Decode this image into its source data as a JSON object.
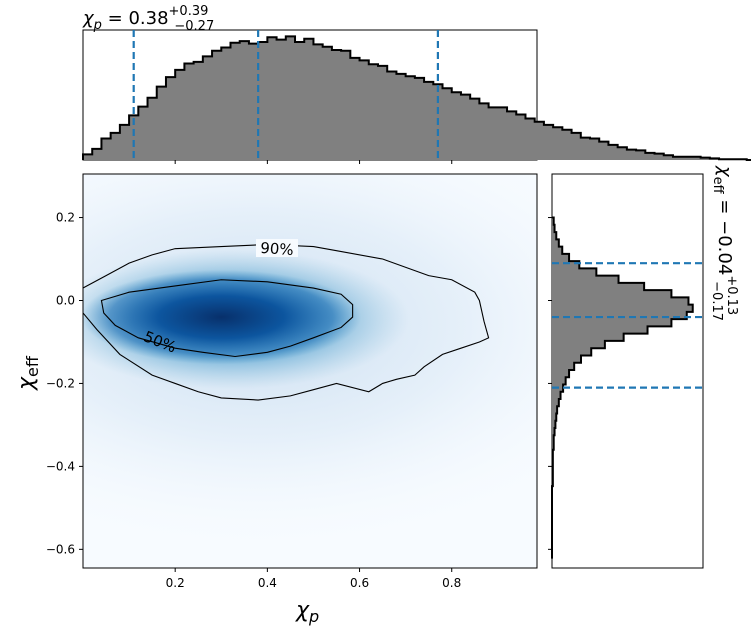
{
  "chart_data": {
    "type": "corner-plot",
    "titles": {
      "top": {
        "base": "χ",
        "sub": "p",
        "value": " = 0.38",
        "sup": "+0.39",
        "lo": "−0.27"
      },
      "right": {
        "base": "χ",
        "sub": "eff",
        "value": " = −0.04",
        "sup": "+0.13",
        "lo": "−0.17"
      }
    },
    "xlabel": {
      "base": "χ",
      "sub": "p"
    },
    "ylabel": {
      "base": "χ",
      "sub": "eff"
    },
    "xlim": [
      0.0,
      0.985
    ],
    "ylim": [
      -0.645,
      0.305
    ],
    "xticks": [
      {
        "v": 0.2,
        "label": "0.2"
      },
      {
        "v": 0.4,
        "label": "0.4"
      },
      {
        "v": 0.6,
        "label": "0.6"
      },
      {
        "v": 0.8,
        "label": "0.8"
      }
    ],
    "yticks": [
      {
        "v": 0.2,
        "label": "0.2"
      },
      {
        "v": 0.0,
        "label": "0.0"
      },
      {
        "v": -0.2,
        "label": "−0.2"
      },
      {
        "v": -0.4,
        "label": "−0.4"
      },
      {
        "v": -0.6,
        "label": "−0.6"
      }
    ],
    "chi_p_quantiles": [
      0.11,
      0.38,
      0.77
    ],
    "chi_eff_quantiles": [
      -0.21,
      -0.04,
      0.09
    ],
    "contour_labels": [
      "90%",
      "50%"
    ],
    "density_center": [
      0.3,
      -0.04
    ],
    "contour_50": [
      [
        0.04,
        0.0
      ],
      [
        0.1,
        0.02
      ],
      [
        0.2,
        0.035
      ],
      [
        0.3,
        0.05
      ],
      [
        0.4,
        0.045
      ],
      [
        0.5,
        0.03
      ],
      [
        0.56,
        0.015
      ],
      [
        0.585,
        -0.01
      ],
      [
        0.585,
        -0.04
      ],
      [
        0.56,
        -0.065
      ],
      [
        0.5,
        -0.09
      ],
      [
        0.45,
        -0.11
      ],
      [
        0.4,
        -0.125
      ],
      [
        0.33,
        -0.135
      ],
      [
        0.26,
        -0.125
      ],
      [
        0.2,
        -0.115
      ],
      [
        0.12,
        -0.09
      ],
      [
        0.07,
        -0.06
      ],
      [
        0.045,
        -0.03
      ],
      [
        0.04,
        0.0
      ]
    ],
    "contour_90": [
      [
        0.0,
        0.03
      ],
      [
        0.05,
        0.06
      ],
      [
        0.1,
        0.09
      ],
      [
        0.15,
        0.11
      ],
      [
        0.2,
        0.125
      ],
      [
        0.3,
        0.13
      ],
      [
        0.4,
        0.135
      ],
      [
        0.5,
        0.13
      ],
      [
        0.55,
        0.12
      ],
      [
        0.65,
        0.1
      ],
      [
        0.75,
        0.06
      ],
      [
        0.8,
        0.05
      ],
      [
        0.85,
        0.02
      ],
      [
        0.86,
        0.0
      ],
      [
        0.87,
        -0.05
      ],
      [
        0.88,
        -0.09
      ],
      [
        0.86,
        -0.1
      ],
      [
        0.82,
        -0.115
      ],
      [
        0.78,
        -0.13
      ],
      [
        0.74,
        -0.16
      ],
      [
        0.72,
        -0.18
      ],
      [
        0.68,
        -0.19
      ],
      [
        0.65,
        -0.2
      ],
      [
        0.62,
        -0.22
      ],
      [
        0.55,
        -0.2
      ],
      [
        0.5,
        -0.215
      ],
      [
        0.45,
        -0.23
      ],
      [
        0.38,
        -0.24
      ],
      [
        0.3,
        -0.235
      ],
      [
        0.25,
        -0.22
      ],
      [
        0.2,
        -0.2
      ],
      [
        0.15,
        -0.18
      ],
      [
        0.08,
        -0.13
      ],
      [
        0.03,
        -0.07
      ],
      [
        0.0,
        -0.03
      ]
    ],
    "chi_p_hist": {
      "bin_width": 0.02,
      "x_start": 0.0,
      "counts": [
        7,
        14,
        27,
        34,
        44,
        56,
        67,
        78,
        92,
        104,
        113,
        121,
        123,
        130,
        137,
        141,
        147,
        149,
        146,
        148,
        154,
        151,
        155,
        148,
        152,
        145,
        142,
        138,
        137,
        128,
        125,
        120,
        118,
        111,
        108,
        105,
        103,
        98,
        95,
        90,
        85,
        82,
        77,
        71,
        66,
        66,
        61,
        57,
        52,
        48,
        44,
        41,
        38,
        34,
        28,
        27,
        23,
        19,
        16,
        13,
        12,
        9,
        8,
        6,
        4,
        4,
        4,
        3,
        2,
        1,
        1,
        1,
        0,
        0,
        0,
        0,
        0,
        0,
        0,
        0,
        0,
        0,
        0,
        0,
        0,
        0,
        0,
        0,
        0,
        0,
        0,
        0,
        0,
        0,
        0,
        0,
        0,
        0,
        0,
        0
      ],
      "ymax": 158
    },
    "chi_eff_hist": {
      "bin_width": 0.0175,
      "y_start": 0.2,
      "counts": [
        2,
        3,
        5,
        8,
        12,
        20,
        32,
        52,
        78,
        108,
        140,
        160,
        165,
        158,
        140,
        112,
        84,
        62,
        46,
        34,
        26,
        20,
        16,
        13,
        10,
        8,
        6,
        5,
        4,
        3,
        2,
        2,
        1,
        1,
        1,
        1,
        1,
        0,
        0,
        0,
        0,
        0,
        0,
        0,
        0,
        0,
        0
      ],
      "xmax": 170
    }
  }
}
